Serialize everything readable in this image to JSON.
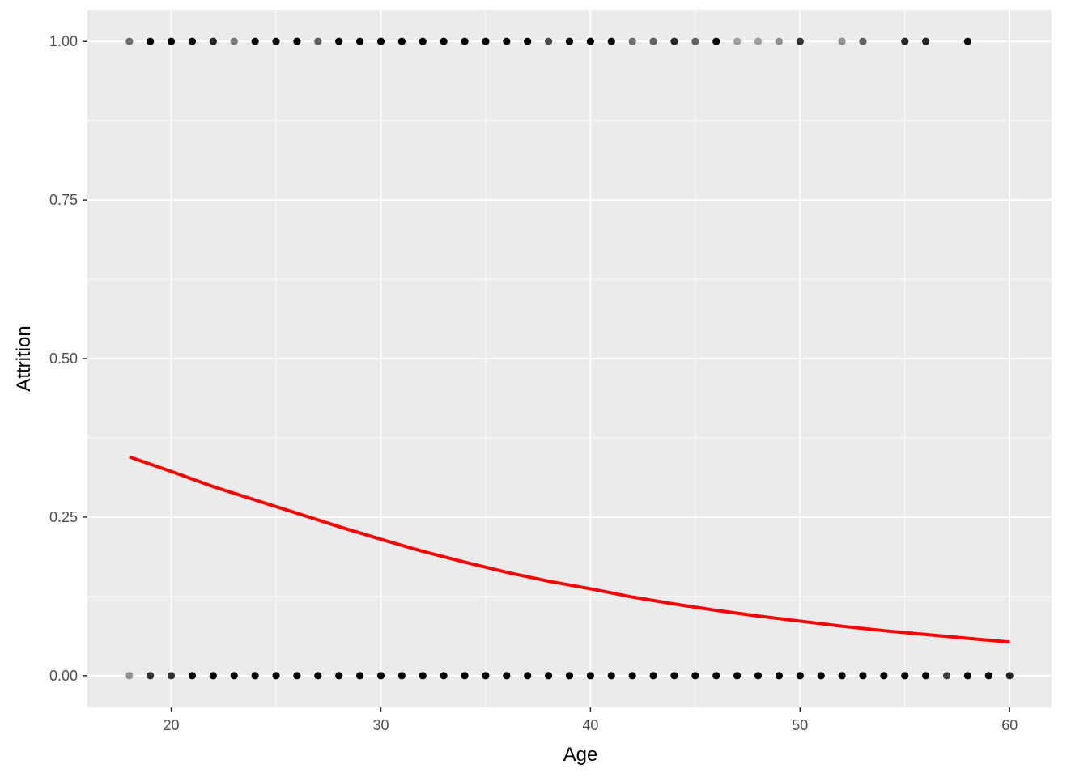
{
  "chart_data": {
    "type": "scatter",
    "xlabel": "Age",
    "ylabel": "Attrition",
    "xlim": [
      16,
      62
    ],
    "ylim": [
      -0.05,
      1.05
    ],
    "x_ticks": [
      20,
      30,
      40,
      50,
      60
    ],
    "x_tick_labels": [
      "20",
      "30",
      "40",
      "50",
      "60"
    ],
    "y_ticks": [
      0,
      0.25,
      0.5,
      0.75,
      1
    ],
    "y_tick_labels": [
      "0.00",
      "0.25",
      "0.50",
      "0.75",
      "1.00"
    ],
    "grid": true,
    "legend": "none",
    "colors": {
      "panel_background": "#ebebeb",
      "grid": "#ffffff",
      "points": "#000000",
      "fit_line": "#ff0000"
    },
    "series": [
      {
        "kind": "points",
        "y": 1,
        "points": [
          {
            "x": 18,
            "opacity": 0.55
          },
          {
            "x": 19,
            "opacity": 1.0
          },
          {
            "x": 20,
            "opacity": 1.0
          },
          {
            "x": 21,
            "opacity": 0.95
          },
          {
            "x": 22,
            "opacity": 0.85
          },
          {
            "x": 23,
            "opacity": 0.5
          },
          {
            "x": 24,
            "opacity": 0.95
          },
          {
            "x": 25,
            "opacity": 0.95
          },
          {
            "x": 26,
            "opacity": 1.0
          },
          {
            "x": 27,
            "opacity": 0.6
          },
          {
            "x": 28,
            "opacity": 1.0
          },
          {
            "x": 29,
            "opacity": 1.0
          },
          {
            "x": 30,
            "opacity": 1.0
          },
          {
            "x": 31,
            "opacity": 1.0
          },
          {
            "x": 32,
            "opacity": 1.0
          },
          {
            "x": 33,
            "opacity": 1.0
          },
          {
            "x": 34,
            "opacity": 1.0
          },
          {
            "x": 35,
            "opacity": 1.0
          },
          {
            "x": 36,
            "opacity": 1.0
          },
          {
            "x": 37,
            "opacity": 1.0
          },
          {
            "x": 38,
            "opacity": 0.7
          },
          {
            "x": 39,
            "opacity": 0.95
          },
          {
            "x": 40,
            "opacity": 1.0
          },
          {
            "x": 41,
            "opacity": 0.95
          },
          {
            "x": 42,
            "opacity": 0.55
          },
          {
            "x": 43,
            "opacity": 0.6
          },
          {
            "x": 44,
            "opacity": 0.85
          },
          {
            "x": 45,
            "opacity": 0.6
          },
          {
            "x": 46,
            "opacity": 1.0
          },
          {
            "x": 47,
            "opacity": 0.35
          },
          {
            "x": 48,
            "opacity": 0.35
          },
          {
            "x": 49,
            "opacity": 0.4
          },
          {
            "x": 50,
            "opacity": 0.8
          },
          {
            "x": 52,
            "opacity": 0.4
          },
          {
            "x": 53,
            "opacity": 0.6
          },
          {
            "x": 55,
            "opacity": 0.85
          },
          {
            "x": 56,
            "opacity": 0.85
          },
          {
            "x": 58,
            "opacity": 0.95
          }
        ]
      },
      {
        "kind": "points",
        "y": 0,
        "points": [
          {
            "x": 18,
            "opacity": 0.4
          },
          {
            "x": 19,
            "opacity": 0.8
          },
          {
            "x": 20,
            "opacity": 0.8
          },
          {
            "x": 21,
            "opacity": 1.0
          },
          {
            "x": 22,
            "opacity": 1.0
          },
          {
            "x": 23,
            "opacity": 1.0
          },
          {
            "x": 24,
            "opacity": 1.0
          },
          {
            "x": 25,
            "opacity": 1.0
          },
          {
            "x": 26,
            "opacity": 1.0
          },
          {
            "x": 27,
            "opacity": 1.0
          },
          {
            "x": 28,
            "opacity": 1.0
          },
          {
            "x": 29,
            "opacity": 1.0
          },
          {
            "x": 30,
            "opacity": 1.0
          },
          {
            "x": 31,
            "opacity": 1.0
          },
          {
            "x": 32,
            "opacity": 1.0
          },
          {
            "x": 33,
            "opacity": 1.0
          },
          {
            "x": 34,
            "opacity": 1.0
          },
          {
            "x": 35,
            "opacity": 1.0
          },
          {
            "x": 36,
            "opacity": 1.0
          },
          {
            "x": 37,
            "opacity": 1.0
          },
          {
            "x": 38,
            "opacity": 1.0
          },
          {
            "x": 39,
            "opacity": 1.0
          },
          {
            "x": 40,
            "opacity": 1.0
          },
          {
            "x": 41,
            "opacity": 1.0
          },
          {
            "x": 42,
            "opacity": 1.0
          },
          {
            "x": 43,
            "opacity": 1.0
          },
          {
            "x": 44,
            "opacity": 1.0
          },
          {
            "x": 45,
            "opacity": 1.0
          },
          {
            "x": 46,
            "opacity": 1.0
          },
          {
            "x": 47,
            "opacity": 1.0
          },
          {
            "x": 48,
            "opacity": 1.0
          },
          {
            "x": 49,
            "opacity": 1.0
          },
          {
            "x": 50,
            "opacity": 1.0
          },
          {
            "x": 51,
            "opacity": 1.0
          },
          {
            "x": 52,
            "opacity": 1.0
          },
          {
            "x": 53,
            "opacity": 1.0
          },
          {
            "x": 54,
            "opacity": 1.0
          },
          {
            "x": 55,
            "opacity": 1.0
          },
          {
            "x": 56,
            "opacity": 1.0
          },
          {
            "x": 57,
            "opacity": 0.75
          },
          {
            "x": 58,
            "opacity": 1.0
          },
          {
            "x": 59,
            "opacity": 1.0
          },
          {
            "x": 60,
            "opacity": 0.85
          }
        ]
      },
      {
        "kind": "line",
        "x": [
          18,
          20,
          22,
          24,
          26,
          28,
          30,
          32,
          34,
          36,
          38,
          40,
          42,
          44,
          46,
          48,
          50,
          52,
          54,
          56,
          58,
          60
        ],
        "y": [
          0.345,
          0.322,
          0.298,
          0.277,
          0.256,
          0.235,
          0.215,
          0.196,
          0.179,
          0.163,
          0.149,
          0.137,
          0.124,
          0.113,
          0.103,
          0.094,
          0.086,
          0.078,
          0.071,
          0.065,
          0.059,
          0.053
        ]
      }
    ]
  }
}
